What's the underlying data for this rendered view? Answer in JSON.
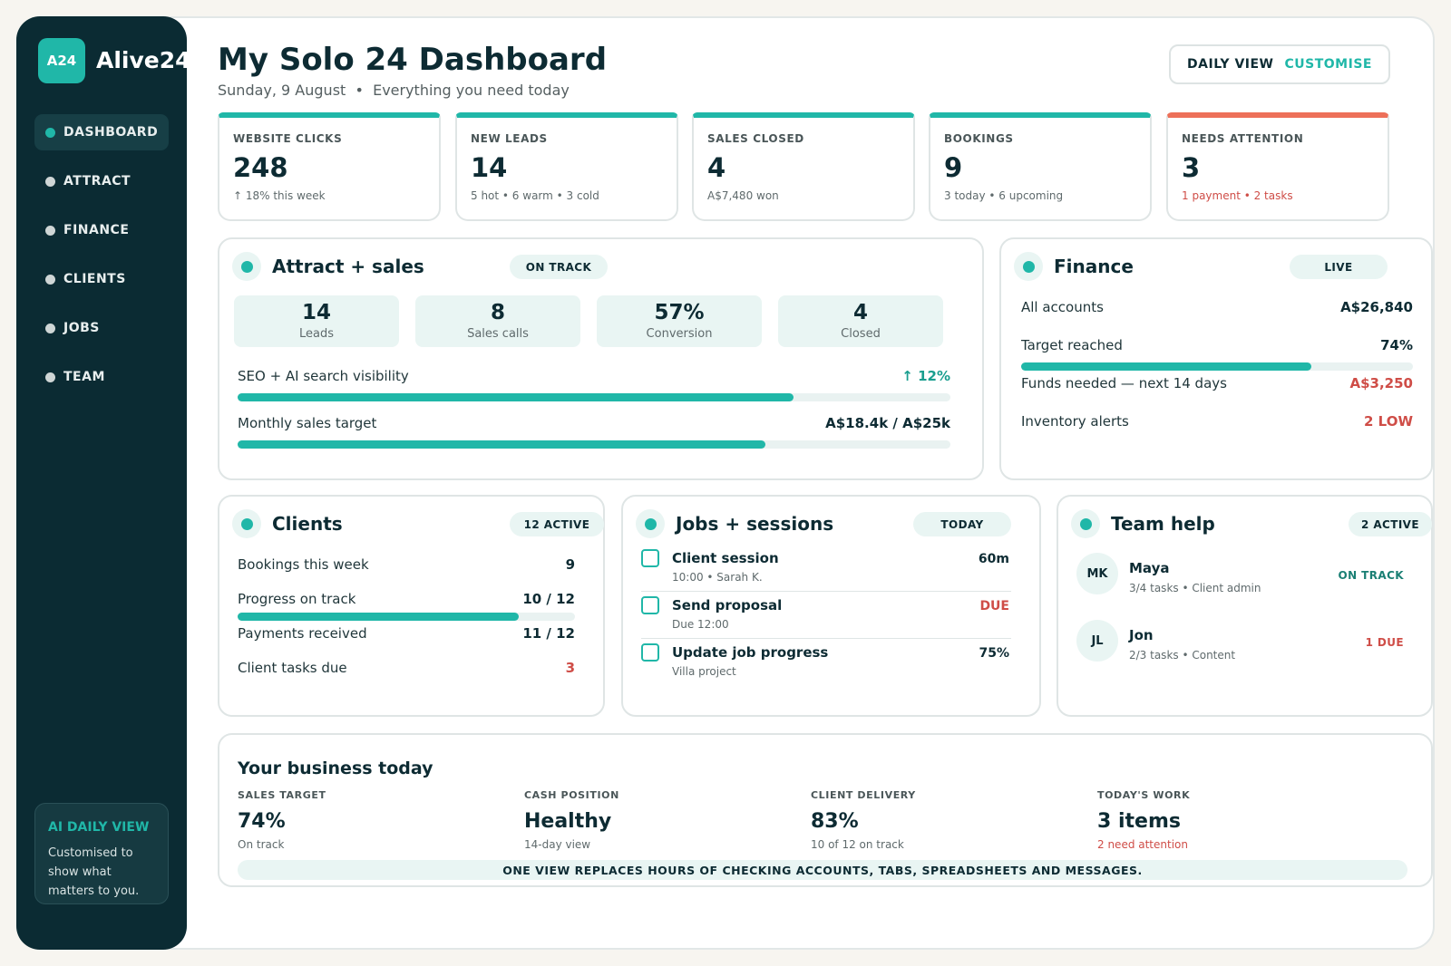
{
  "brand": {
    "badge": "A24",
    "name": "Alive24"
  },
  "nav": [
    {
      "label": "DASHBOARD",
      "active": true
    },
    {
      "label": "ATTRACT"
    },
    {
      "label": "FINANCE"
    },
    {
      "label": "CLIENTS"
    },
    {
      "label": "JOBS"
    },
    {
      "label": "TEAM"
    }
  ],
  "ai_box": {
    "title": "AI DAILY VIEW",
    "text": "Customised to show what matters to you."
  },
  "header": {
    "title": "My Solo 24 Dashboard",
    "date": "Sunday, 9 August",
    "separator": "•",
    "tagline": "Everything you need today",
    "view_daily": "DAILY VIEW",
    "view_customise": "CUSTOMISE"
  },
  "kpis": [
    {
      "label": "WEBSITE CLICKS",
      "value": "248",
      "note": "↑ 18% this week"
    },
    {
      "label": "NEW LEADS",
      "value": "14",
      "note": "5 hot • 6 warm • 3 cold"
    },
    {
      "label": "SALES CLOSED",
      "value": "4",
      "note": "A$7,480 won"
    },
    {
      "label": "BOOKINGS",
      "value": "9",
      "note": "3 today • 6 upcoming"
    },
    {
      "label": "NEEDS ATTENTION",
      "value": "3",
      "note": "1 payment • 2 tasks",
      "accent": "#ed7059"
    }
  ],
  "attract": {
    "title": "Attract + sales",
    "status": "ON TRACK",
    "metrics": [
      {
        "value": "14",
        "label": "Leads"
      },
      {
        "value": "8",
        "label": "Sales calls"
      },
      {
        "value": "57%",
        "label": "Conversion"
      },
      {
        "value": "4",
        "label": "Closed"
      }
    ],
    "seo_label": "SEO + AI search visibility",
    "seo_value": "↑ 12%",
    "seo_progress": 0.78,
    "sales_label": "Monthly sales target",
    "sales_value": "A$18.4k / A$25k",
    "sales_progress": 0.74
  },
  "finance": {
    "title": "Finance",
    "status": "LIVE",
    "accounts_label": "All accounts",
    "accounts_value": "A$26,840",
    "target_label": "Target reached",
    "target_value": "74%",
    "target_progress": 0.74,
    "funds_label": "Funds needed — next 14 days",
    "funds_value": "A$3,250",
    "inventory_label": "Inventory alerts",
    "inventory_value": "2 LOW"
  },
  "clients": {
    "title": "Clients",
    "status": "12 ACTIVE",
    "bookings_label": "Bookings this week",
    "bookings_value": "9",
    "progress_label": "Progress on track",
    "progress_value": "10 / 12",
    "progress_fraction": 0.833,
    "payments_label": "Payments received",
    "payments_value": "11 / 12",
    "tasks_label": "Client tasks due",
    "tasks_value": "3"
  },
  "jobs": {
    "title": "Jobs + sessions",
    "status": "TODAY",
    "items": [
      {
        "title": "Client session",
        "meta": "10:00 • Sarah K.",
        "value": "60m"
      },
      {
        "title": "Send proposal",
        "meta": "Due 12:00",
        "value": "DUE"
      },
      {
        "title": "Update job progress",
        "meta": "Villa project",
        "value": "75%"
      }
    ]
  },
  "team": {
    "title": "Team help",
    "status": "2 ACTIVE",
    "members": [
      {
        "initials": "MK",
        "name": "Maya",
        "meta": "3/4 tasks • Client admin",
        "status": "ON TRACK"
      },
      {
        "initials": "JL",
        "name": "Jon",
        "meta": "2/3 tasks • Content",
        "status": "1 DUE"
      }
    ]
  },
  "business": {
    "title": "Your business today",
    "columns": [
      {
        "label": "SALES TARGET",
        "value": "74%",
        "note": "On track"
      },
      {
        "label": "CASH POSITION",
        "value": "Healthy",
        "note": "14-day view"
      },
      {
        "label": "CLIENT DELIVERY",
        "value": "83%",
        "note": "10 of 12 on track"
      },
      {
        "label": "TODAY'S WORK",
        "value": "3 items",
        "note": "2 need attention"
      }
    ],
    "banner": "ONE VIEW REPLACES HOURS OF CHECKING ACCOUNTS, TABS, SPREADSHEETS AND MESSAGES."
  },
  "colors": {
    "accent": "#20b7a8",
    "sidebar": "#0b2b33",
    "alert": "#ed7059",
    "danger": "#cf4d47"
  }
}
